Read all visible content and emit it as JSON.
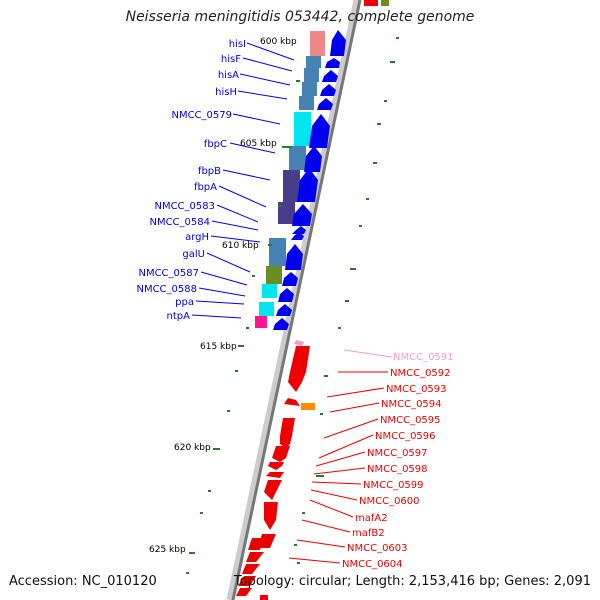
{
  "title": "Neisseria meningitidis 053442, complete genome",
  "accession": "Accession: NC_010120",
  "topology": "Topology: circular; Length: 2,153,416 bp; Genes: 2,091",
  "colors": {
    "forward_gene": "#0000ee",
    "reverse_gene": "#ee0000",
    "reverse_faded": "#ff99cc",
    "skew_positive": "#2a7a2a",
    "backbone": "#888888"
  },
  "ticks": [
    "600 kbp",
    "605 kbp",
    "610 kbp",
    "615 kbp",
    "620 kbp",
    "625 kbp"
  ],
  "left_labels": [
    "hisI",
    "hisF",
    "hisA",
    "hisH",
    "NMCC_0579",
    "fbpC",
    "fbpB",
    "fbpA",
    "NMCC_0583",
    "NMCC_0584",
    "argH",
    "galU",
    "NMCC_0587",
    "NMCC_0588",
    "ppa",
    "ntpA"
  ],
  "right_labels": [
    "NMCC_0591",
    "NMCC_0592",
    "NMCC_0593",
    "NMCC_0594",
    "NMCC_0595",
    "NMCC_0596",
    "NMCC_0597",
    "NMCC_0598",
    "NMCC_0599",
    "NMCC_0600",
    "mafA2",
    "mafB2",
    "NMCC_0603",
    "NMCC_0604"
  ]
}
